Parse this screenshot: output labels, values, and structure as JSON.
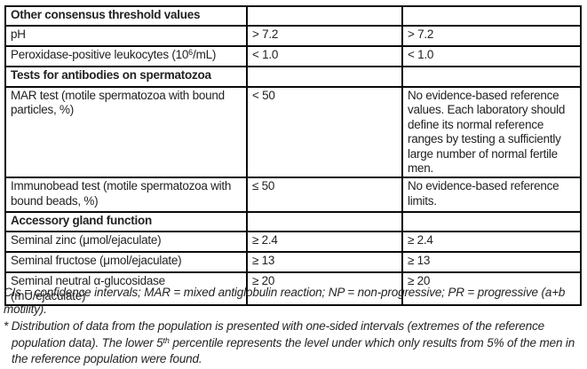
{
  "colors": {
    "background": "#ffffff",
    "border": "#0a0a0a",
    "text": "#222222"
  },
  "table": {
    "rows": [
      {
        "kind": "section",
        "c1": "Other consensus threshold values",
        "c2": "",
        "c3": ""
      },
      {
        "kind": "data",
        "c1": "pH",
        "c2": "> 7.2",
        "c3": "> 7.2"
      },
      {
        "kind": "data",
        "c1_pre": "Peroxidase-positive leukocytes (10",
        "c1_sup": "6",
        "c1_post": "/mL)",
        "c2": "< 1.0",
        "c3": "< 1.0"
      },
      {
        "kind": "section",
        "c1": "Tests for antibodies on spermatozoa",
        "c2": "",
        "c3": ""
      },
      {
        "kind": "data",
        "c1": "MAR test (motile spermatozoa with bound particles, %)",
        "c2": "< 50",
        "c3": "No evidence-based reference values. Each laboratory should define its normal reference ranges by testing a sufficiently large number of normal fertile men."
      },
      {
        "kind": "data",
        "c1": "Immunobead test (motile spermatozoa with bound beads, %)",
        "c2": "≤ 50",
        "c3": "No evidence-based reference limits."
      },
      {
        "kind": "section",
        "c1": "Accessory gland function",
        "c2": "",
        "c3": ""
      },
      {
        "kind": "data",
        "c1": "Seminal zinc (μmol/ejaculate)",
        "c2": "≥ 2.4",
        "c3": "≥ 2.4"
      },
      {
        "kind": "data",
        "c1": "Seminal fructose (μmol/ejaculate)",
        "c2": "≥ 13",
        "c3": "≥ 13"
      },
      {
        "kind": "data",
        "c1": "Seminal neutral α-glucosidase (mU/ejaculate)",
        "c2": "≥ 20",
        "c3": "≥ 20"
      }
    ]
  },
  "footnotes": {
    "abbreviations": "CIs = confidence intervals; MAR = mixed antiglobulin reaction; NP = non-progressive; PR = progressive (a+b motility).",
    "asterisk_pre": "* Distribution of data from the population is presented with one-sided intervals (extremes of the reference population data). The lower 5",
    "asterisk_sup": "th",
    "asterisk_post": " percentile represents the level under which only results from 5% of the men in the reference population were found."
  }
}
